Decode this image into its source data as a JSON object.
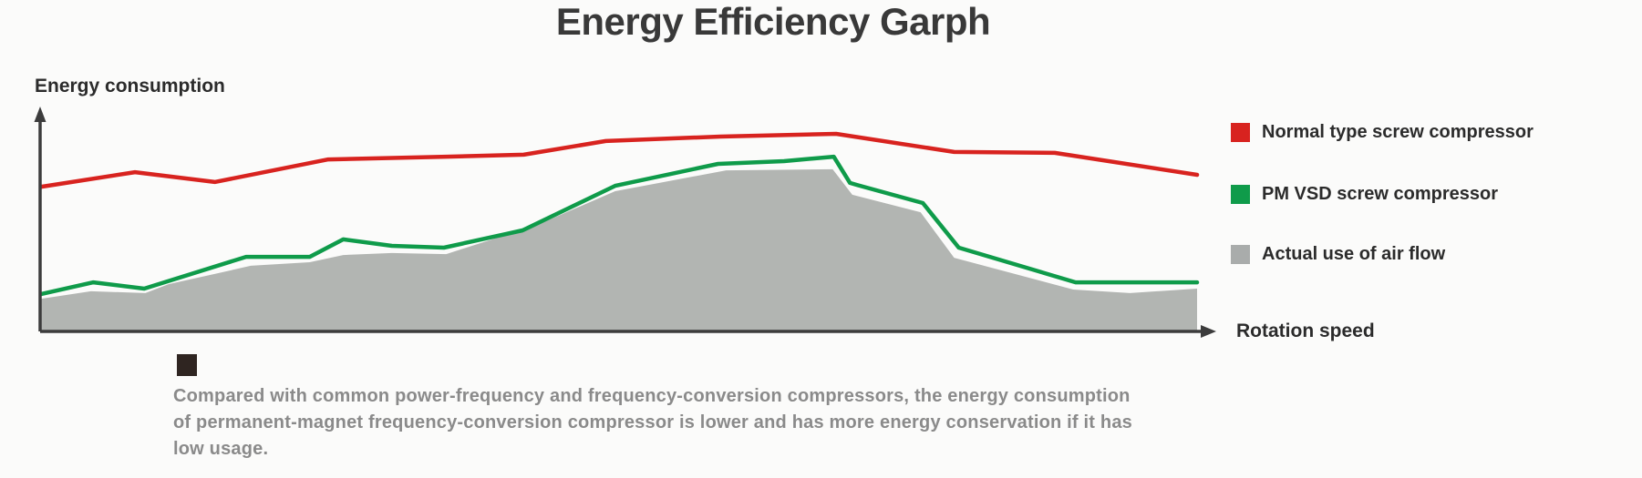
{
  "title": "Energy Efficiency Garph",
  "axes": {
    "y_label": "Energy consumption",
    "x_label": "Rotation speed"
  },
  "legend": {
    "items": [
      {
        "label": "Normal type screw compressor",
        "color": "#d8231f"
      },
      {
        "label": "PM VSD screw compressor",
        "color": "#0f9b4a"
      },
      {
        "label": "Actual use of air flow",
        "color": "#a9acab"
      }
    ]
  },
  "note": {
    "bullet_color": "#2f2521",
    "lines": [
      "Compared with common power-frequency and frequency-conversion compressors, the energy consumption",
      "of permanent-magnet frequency-conversion compressor is lower and has more energy conservation if it has",
      "low usage."
    ]
  },
  "chart_data": {
    "type": "area",
    "title": "Energy Efficiency Garph",
    "xlabel": "Rotation speed",
    "ylabel": "Energy consumption",
    "x_range": [
      0,
      100
    ],
    "y_range": [
      0,
      100
    ],
    "grid": false,
    "legend_position": "right",
    "axis_units": "relative (axes are unlabeled; values are % of plot range)",
    "axis_color": "#3c3c3c",
    "series": [
      {
        "name": "Actual use of air flow",
        "kind": "area",
        "color": "#b2b5b2",
        "points": [
          [
            0.1,
            14.2
          ],
          [
            4.4,
            17.5
          ],
          [
            9.1,
            16.7
          ],
          [
            11.1,
            20.7
          ],
          [
            15.4,
            25.6
          ],
          [
            18.2,
            28.9
          ],
          [
            23.3,
            30.5
          ],
          [
            26.2,
            33.7
          ],
          [
            30.4,
            34.6
          ],
          [
            35.1,
            34.1
          ],
          [
            43.0,
            47.2
          ],
          [
            49.7,
            62.2
          ],
          [
            59.3,
            71.5
          ],
          [
            68.5,
            72.0
          ],
          [
            70.2,
            60.6
          ],
          [
            76.1,
            52.8
          ],
          [
            79.0,
            32.5
          ],
          [
            89.3,
            18.3
          ],
          [
            94.2,
            16.7
          ],
          [
            100,
            18.7
          ]
        ]
      },
      {
        "name": "PM VSD screw compressor",
        "kind": "line",
        "color": "#0f9b4a",
        "points": [
          [
            0.1,
            16.3
          ],
          [
            4.6,
            21.5
          ],
          [
            9.0,
            18.7
          ],
          [
            17.8,
            32.9
          ],
          [
            23.3,
            32.9
          ],
          [
            26.2,
            40.7
          ],
          [
            30.4,
            37.8
          ],
          [
            34.9,
            37.0
          ],
          [
            41.7,
            44.7
          ],
          [
            49.7,
            64.6
          ],
          [
            58.6,
            74.4
          ],
          [
            64.3,
            75.6
          ],
          [
            68.6,
            77.6
          ],
          [
            70.0,
            65.9
          ],
          [
            70.6,
            65.0
          ],
          [
            76.3,
            56.9
          ],
          [
            79.4,
            37.0
          ],
          [
            89.5,
            21.5
          ],
          [
            100,
            21.5
          ]
        ]
      },
      {
        "name": "Normal type screw compressor",
        "kind": "line",
        "color": "#d8231f",
        "points": [
          [
            0.1,
            64.2
          ],
          [
            8.2,
            70.7
          ],
          [
            15.1,
            66.3
          ],
          [
            24.9,
            76.4
          ],
          [
            35.1,
            77.6
          ],
          [
            41.8,
            78.5
          ],
          [
            48.9,
            84.6
          ],
          [
            58.8,
            86.6
          ],
          [
            68.8,
            87.8
          ],
          [
            79.0,
            79.7
          ],
          [
            87.7,
            79.3
          ],
          [
            100,
            69.5
          ]
        ]
      }
    ]
  }
}
